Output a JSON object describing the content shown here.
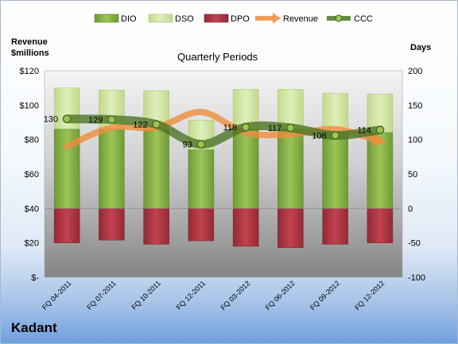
{
  "company": "Kadant",
  "chart_data": {
    "type": "bar",
    "title": "Quarterly Periods",
    "left_axis_title": [
      "Revenue",
      "$millions"
    ],
    "right_axis_title": "Days",
    "categories": [
      "FQ 04-2011",
      "FQ 07-2011",
      "FQ 10-2011",
      "FQ 12-2011",
      "FQ 03-2012",
      "FQ 06-2012",
      "FQ 09-2012",
      "FQ 12-2012"
    ],
    "left_ticks": [
      "$-",
      "$20",
      "$40",
      "$60",
      "$80",
      "$100",
      "$120"
    ],
    "right_ticks": [
      "-100",
      "-50",
      "0",
      "50",
      "100",
      "150",
      "200"
    ],
    "left_ylim": [
      0,
      120
    ],
    "right_ylim": [
      -100,
      200
    ],
    "legend_position": "top",
    "grid": false,
    "series": [
      {
        "name": "DIO",
        "type": "bar",
        "axis": "right",
        "color": "#8cb548",
        "values": [
          115,
          115,
          115,
          85,
          115,
          115,
          110,
          110
        ]
      },
      {
        "name": "DSO",
        "type": "bar",
        "axis": "right",
        "color": "#d3e6a4",
        "values": [
          60,
          57,
          56,
          43,
          58,
          58,
          57,
          56
        ]
      },
      {
        "name": "DPO",
        "type": "bar",
        "axis": "right",
        "color": "#b03440",
        "values": [
          -50,
          -46,
          -52,
          -47,
          -55,
          -57,
          -52,
          -50
        ]
      },
      {
        "name": "Revenue",
        "type": "line",
        "axis": "left",
        "color": "#ef8d3f",
        "values": [
          76,
          87,
          87,
          96,
          84,
          83,
          86,
          79
        ]
      },
      {
        "name": "CCC",
        "type": "line",
        "axis": "right",
        "color": "#4c7526",
        "values": [
          130,
          129,
          122,
          93,
          118,
          117,
          106,
          114
        ]
      }
    ],
    "data_labels": [
      "130",
      "129",
      "122",
      "93",
      "118",
      "117",
      "106",
      "114"
    ]
  }
}
